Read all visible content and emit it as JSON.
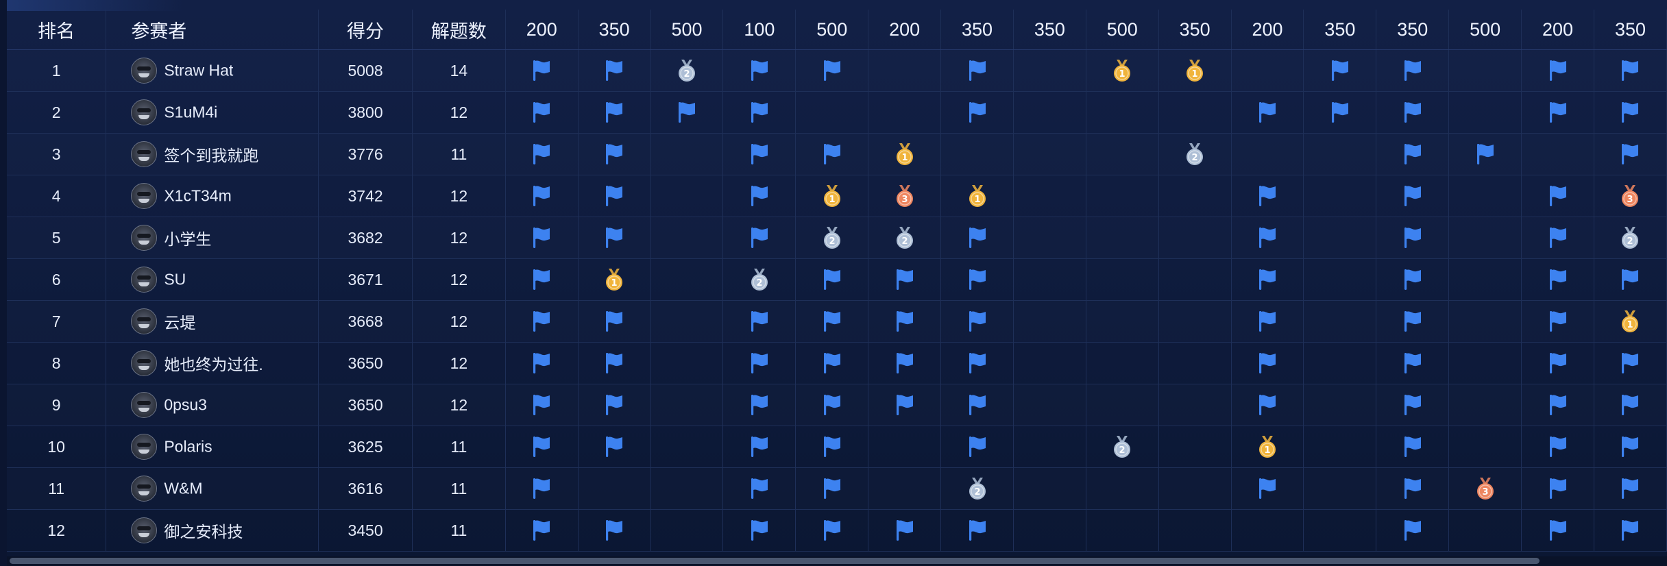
{
  "table": {
    "headers": {
      "rank": "排名",
      "player": "参赛者",
      "score": "得分",
      "solved": "解题数"
    },
    "challenge_points": [
      "200",
      "350",
      "500",
      "100",
      "500",
      "200",
      "350",
      "350",
      "500",
      "350",
      "200",
      "350",
      "350",
      "500",
      "200",
      "350"
    ],
    "icon_legend": {
      "F": "solved-flag-icon",
      "1": "gold-medal-icon",
      "2": "silver-medal-icon",
      "3": "bronze-medal-icon",
      "-": "empty"
    },
    "colors": {
      "flag": "#3d82f0",
      "gold": "#f0b43c",
      "silver": "#aebfd6",
      "bronze": "#ee8660"
    },
    "rows": [
      {
        "rank": "1",
        "name": "Straw Hat",
        "score": "5008",
        "solved": "14",
        "cells": [
          "F",
          "F",
          "2",
          "F",
          "F",
          "-",
          "F",
          "-",
          "1",
          "1",
          "-",
          "F",
          "F",
          "-",
          "F",
          "F"
        ]
      },
      {
        "rank": "2",
        "name": "S1uM4i",
        "score": "3800",
        "solved": "12",
        "cells": [
          "F",
          "F",
          "F",
          "F",
          "-",
          "-",
          "F",
          "-",
          "-",
          "-",
          "F",
          "F",
          "F",
          "-",
          "F",
          "F"
        ]
      },
      {
        "rank": "3",
        "name": "签个到我就跑",
        "score": "3776",
        "solved": "11",
        "cells": [
          "F",
          "F",
          "-",
          "F",
          "F",
          "1",
          "-",
          "-",
          "-",
          "2",
          "-",
          "-",
          "F",
          "F",
          "-",
          "F"
        ]
      },
      {
        "rank": "4",
        "name": "X1cT34m",
        "score": "3742",
        "solved": "12",
        "cells": [
          "F",
          "F",
          "-",
          "F",
          "1",
          "3",
          "1",
          "-",
          "-",
          "-",
          "F",
          "-",
          "F",
          "-",
          "F",
          "3"
        ]
      },
      {
        "rank": "5",
        "name": "小学生",
        "score": "3682",
        "solved": "12",
        "cells": [
          "F",
          "F",
          "-",
          "F",
          "2",
          "2",
          "F",
          "-",
          "-",
          "-",
          "F",
          "-",
          "F",
          "-",
          "F",
          "2"
        ]
      },
      {
        "rank": "6",
        "name": "SU",
        "score": "3671",
        "solved": "12",
        "cells": [
          "F",
          "1",
          "-",
          "2",
          "F",
          "F",
          "F",
          "-",
          "-",
          "-",
          "F",
          "-",
          "F",
          "-",
          "F",
          "F"
        ]
      },
      {
        "rank": "7",
        "name": "云堤",
        "score": "3668",
        "solved": "12",
        "cells": [
          "F",
          "F",
          "-",
          "F",
          "F",
          "F",
          "F",
          "-",
          "-",
          "-",
          "F",
          "-",
          "F",
          "-",
          "F",
          "1"
        ]
      },
      {
        "rank": "8",
        "name": "她也终为过往.",
        "score": "3650",
        "solved": "12",
        "cells": [
          "F",
          "F",
          "-",
          "F",
          "F",
          "F",
          "F",
          "-",
          "-",
          "-",
          "F",
          "-",
          "F",
          "-",
          "F",
          "F"
        ]
      },
      {
        "rank": "9",
        "name": "0psu3",
        "score": "3650",
        "solved": "12",
        "cells": [
          "F",
          "F",
          "-",
          "F",
          "F",
          "F",
          "F",
          "-",
          "-",
          "-",
          "F",
          "-",
          "F",
          "-",
          "F",
          "F"
        ]
      },
      {
        "rank": "10",
        "name": "Polaris",
        "score": "3625",
        "solved": "11",
        "cells": [
          "F",
          "F",
          "-",
          "F",
          "F",
          "-",
          "F",
          "-",
          "2",
          "-",
          "1",
          "-",
          "F",
          "-",
          "F",
          "F"
        ]
      },
      {
        "rank": "11",
        "name": "W&M",
        "score": "3616",
        "solved": "11",
        "cells": [
          "F",
          "-",
          "-",
          "F",
          "F",
          "-",
          "2",
          "-",
          "-",
          "-",
          "F",
          "-",
          "F",
          "3",
          "F",
          "F"
        ]
      },
      {
        "rank": "12",
        "name": "御之安科技",
        "score": "3450",
        "solved": "11",
        "cells": [
          "F",
          "F",
          "-",
          "F",
          "F",
          "F",
          "F",
          "-",
          "-",
          "-",
          "-",
          "-",
          "F",
          "-",
          "F",
          "F"
        ]
      }
    ]
  }
}
